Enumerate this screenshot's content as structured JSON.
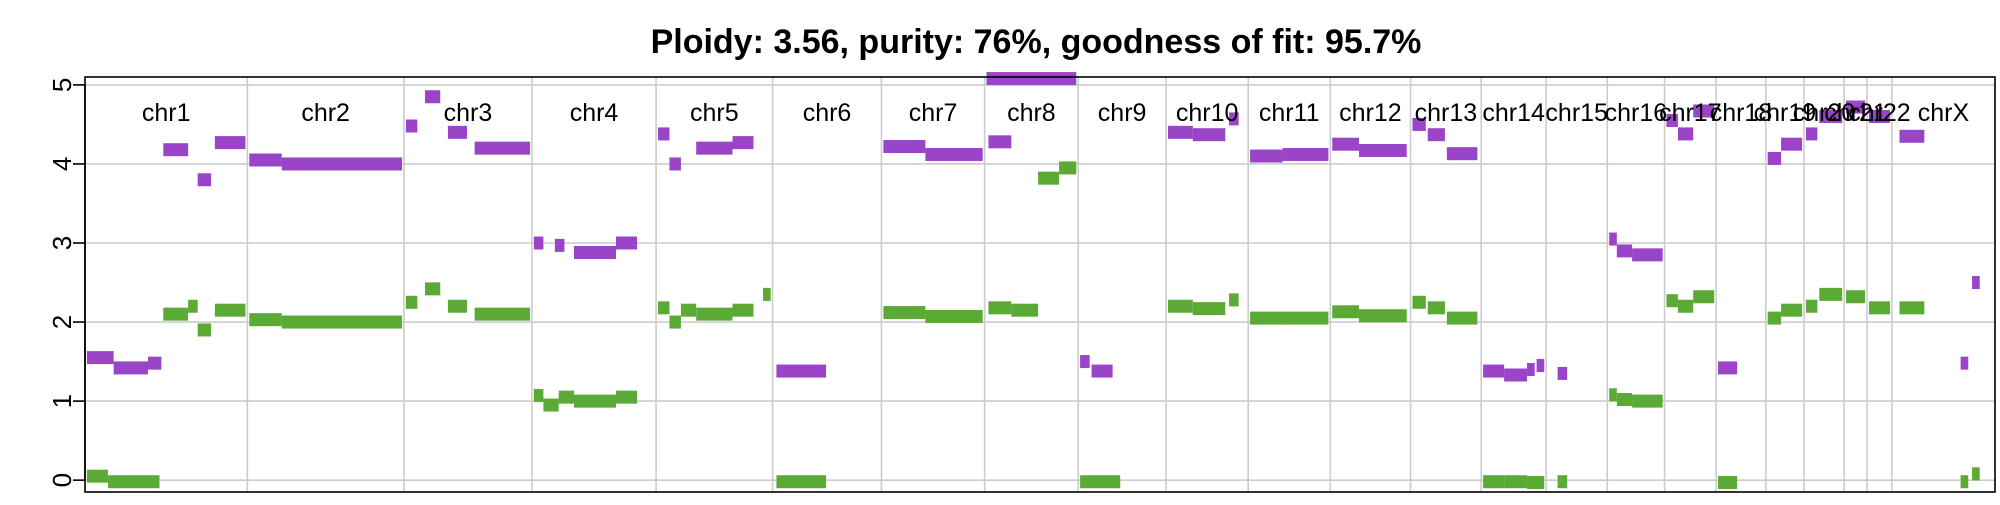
{
  "colors": {
    "major": "#9a44c8",
    "minor": "#5aaa35",
    "grid": "#cccccc"
  },
  "chart_data": {
    "type": "scatter",
    "title": "Ploidy: 3.56, purity: 76%, goodness of fit: 95.7%",
    "xlabel": "",
    "ylabel": "",
    "ylim": [
      -0.15,
      5.1
    ],
    "y_ticks": [
      0,
      1,
      2,
      3,
      4,
      5
    ],
    "grid": true,
    "chromosomes": [
      {
        "name": "chr1",
        "start": 0.0,
        "end": 8.5
      },
      {
        "name": "chr2",
        "start": 8.5,
        "end": 16.7
      },
      {
        "name": "chr3",
        "start": 16.7,
        "end": 23.4
      },
      {
        "name": "chr4",
        "start": 23.4,
        "end": 29.9
      },
      {
        "name": "chr5",
        "start": 29.9,
        "end": 36.0
      },
      {
        "name": "chr6",
        "start": 36.0,
        "end": 41.7
      },
      {
        "name": "chr7",
        "start": 41.7,
        "end": 47.1
      },
      {
        "name": "chr8",
        "start": 47.1,
        "end": 52.0
      },
      {
        "name": "chr9",
        "start": 52.0,
        "end": 56.6
      },
      {
        "name": "chr10",
        "start": 56.6,
        "end": 60.9
      },
      {
        "name": "chr11",
        "start": 60.9,
        "end": 65.2
      },
      {
        "name": "chr12",
        "start": 65.2,
        "end": 69.4
      },
      {
        "name": "chr13",
        "start": 69.4,
        "end": 73.1
      },
      {
        "name": "chr14",
        "start": 73.1,
        "end": 76.5
      },
      {
        "name": "chr15",
        "start": 76.5,
        "end": 79.7
      },
      {
        "name": "chr16",
        "start": 79.7,
        "end": 82.7
      },
      {
        "name": "chr17",
        "start": 82.7,
        "end": 85.4
      },
      {
        "name": "chr18",
        "start": 85.4,
        "end": 88.0
      },
      {
        "name": "chr19",
        "start": 88.0,
        "end": 90.0
      },
      {
        "name": "chr20",
        "start": 90.0,
        "end": 92.1
      },
      {
        "name": "chr21",
        "start": 92.1,
        "end": 93.3
      },
      {
        "name": "chr22",
        "start": 93.3,
        "end": 94.6
      },
      {
        "name": "chrX",
        "start": 94.6,
        "end": 100.0
      }
    ],
    "series": [
      {
        "role": "major",
        "segments": [
          [
            0.1,
            1.5,
            1.55
          ],
          [
            1.5,
            3.3,
            1.42
          ],
          [
            3.3,
            4.0,
            1.48
          ],
          [
            4.1,
            5.4,
            4.18
          ],
          [
            5.9,
            6.6,
            3.8
          ],
          [
            6.8,
            8.4,
            4.27
          ],
          [
            8.6,
            10.3,
            4.05
          ],
          [
            10.3,
            16.6,
            4.0
          ],
          [
            16.8,
            17.4,
            4.48
          ],
          [
            17.8,
            18.6,
            4.85
          ],
          [
            19.0,
            20.0,
            4.4
          ],
          [
            20.4,
            23.3,
            4.2
          ],
          [
            23.5,
            24.0,
            3.0
          ],
          [
            24.6,
            25.1,
            2.97
          ],
          [
            25.6,
            27.8,
            2.88
          ],
          [
            27.8,
            28.9,
            3.0
          ],
          [
            30.0,
            30.6,
            4.38
          ],
          [
            30.6,
            31.2,
            4.0
          ],
          [
            32.0,
            33.9,
            4.2
          ],
          [
            33.9,
            35.0,
            4.27
          ],
          [
            36.2,
            38.8,
            1.38
          ],
          [
            41.8,
            44.0,
            4.22
          ],
          [
            44.0,
            47.0,
            4.12
          ],
          [
            47.2,
            51.9,
            5.08
          ],
          [
            47.3,
            48.5,
            4.28
          ],
          [
            52.1,
            52.6,
            1.5
          ],
          [
            52.7,
            53.8,
            1.38
          ],
          [
            56.7,
            58.0,
            4.4
          ],
          [
            58.0,
            59.7,
            4.37
          ],
          [
            59.9,
            60.4,
            4.57
          ],
          [
            61.0,
            62.7,
            4.1
          ],
          [
            62.7,
            65.1,
            4.12
          ],
          [
            65.3,
            66.7,
            4.25
          ],
          [
            66.7,
            69.2,
            4.17
          ],
          [
            69.5,
            70.2,
            4.5
          ],
          [
            70.3,
            71.2,
            4.37
          ],
          [
            71.3,
            72.9,
            4.13
          ],
          [
            73.2,
            74.3,
            1.38
          ],
          [
            74.3,
            75.5,
            1.33
          ],
          [
            75.5,
            75.9,
            1.4
          ],
          [
            76.0,
            76.4,
            1.45
          ],
          [
            77.1,
            77.6,
            1.35
          ],
          [
            79.8,
            80.2,
            3.05
          ],
          [
            80.2,
            81.0,
            2.9
          ],
          [
            81.0,
            82.6,
            2.85
          ],
          [
            82.8,
            83.4,
            4.55
          ],
          [
            83.4,
            84.2,
            4.38
          ],
          [
            84.2,
            85.3,
            4.67
          ],
          [
            85.5,
            86.5,
            1.42
          ],
          [
            88.1,
            88.8,
            4.07
          ],
          [
            88.8,
            89.9,
            4.25
          ],
          [
            90.1,
            90.7,
            4.38
          ],
          [
            90.8,
            92.0,
            4.6
          ],
          [
            92.2,
            93.2,
            4.72
          ],
          [
            93.4,
            94.5,
            4.6
          ],
          [
            95.0,
            96.3,
            4.35
          ],
          [
            98.2,
            98.6,
            1.48
          ],
          [
            98.8,
            99.2,
            2.5
          ]
        ]
      },
      {
        "role": "minor",
        "segments": [
          [
            0.1,
            1.2,
            0.05
          ],
          [
            1.2,
            3.9,
            -0.02
          ],
          [
            4.1,
            5.4,
            2.1
          ],
          [
            5.4,
            5.9,
            2.2
          ],
          [
            5.9,
            6.6,
            1.9
          ],
          [
            6.8,
            8.4,
            2.15
          ],
          [
            8.6,
            10.3,
            2.03
          ],
          [
            10.3,
            16.6,
            2.0
          ],
          [
            16.8,
            17.4,
            2.25
          ],
          [
            17.8,
            18.6,
            2.42
          ],
          [
            19.0,
            20.0,
            2.2
          ],
          [
            20.4,
            23.3,
            2.1
          ],
          [
            23.5,
            24.0,
            1.07
          ],
          [
            24.0,
            24.8,
            0.95
          ],
          [
            24.8,
            25.6,
            1.05
          ],
          [
            25.6,
            27.8,
            1.0
          ],
          [
            27.8,
            28.9,
            1.05
          ],
          [
            30.0,
            30.6,
            2.18
          ],
          [
            30.6,
            31.2,
            2.0
          ],
          [
            31.2,
            32.0,
            2.15
          ],
          [
            32.0,
            33.9,
            2.1
          ],
          [
            33.9,
            35.0,
            2.15
          ],
          [
            35.5,
            35.9,
            2.35
          ],
          [
            36.2,
            38.8,
            -0.02
          ],
          [
            41.8,
            44.0,
            2.12
          ],
          [
            44.0,
            47.0,
            2.07
          ],
          [
            47.3,
            48.5,
            2.18
          ],
          [
            48.5,
            49.9,
            2.15
          ],
          [
            49.9,
            51.0,
            3.82
          ],
          [
            51.0,
            51.9,
            3.95
          ],
          [
            52.1,
            54.2,
            -0.02
          ],
          [
            56.7,
            58.0,
            2.2
          ],
          [
            58.0,
            59.7,
            2.17
          ],
          [
            59.9,
            60.4,
            2.28
          ],
          [
            61.0,
            62.7,
            2.05
          ],
          [
            62.7,
            65.1,
            2.05
          ],
          [
            65.3,
            66.7,
            2.13
          ],
          [
            66.7,
            69.2,
            2.08
          ],
          [
            69.5,
            70.2,
            2.25
          ],
          [
            70.3,
            71.2,
            2.18
          ],
          [
            71.3,
            72.9,
            2.05
          ],
          [
            73.2,
            74.3,
            -0.02
          ],
          [
            74.3,
            75.5,
            -0.02
          ],
          [
            75.5,
            76.4,
            -0.03
          ],
          [
            77.1,
            77.6,
            -0.02
          ],
          [
            79.8,
            80.2,
            1.08
          ],
          [
            80.2,
            81.0,
            1.02
          ],
          [
            81.0,
            82.6,
            1.0
          ],
          [
            82.8,
            83.4,
            2.27
          ],
          [
            83.4,
            84.2,
            2.2
          ],
          [
            84.2,
            85.3,
            2.32
          ],
          [
            85.5,
            86.5,
            -0.03
          ],
          [
            88.1,
            88.8,
            2.05
          ],
          [
            88.8,
            89.9,
            2.15
          ],
          [
            90.1,
            90.7,
            2.2
          ],
          [
            90.8,
            92.0,
            2.35
          ],
          [
            92.2,
            93.2,
            2.32
          ],
          [
            93.4,
            94.5,
            2.18
          ],
          [
            95.0,
            96.3,
            2.18
          ],
          [
            98.2,
            98.6,
            -0.02
          ],
          [
            98.8,
            99.2,
            0.08
          ]
        ]
      }
    ]
  }
}
